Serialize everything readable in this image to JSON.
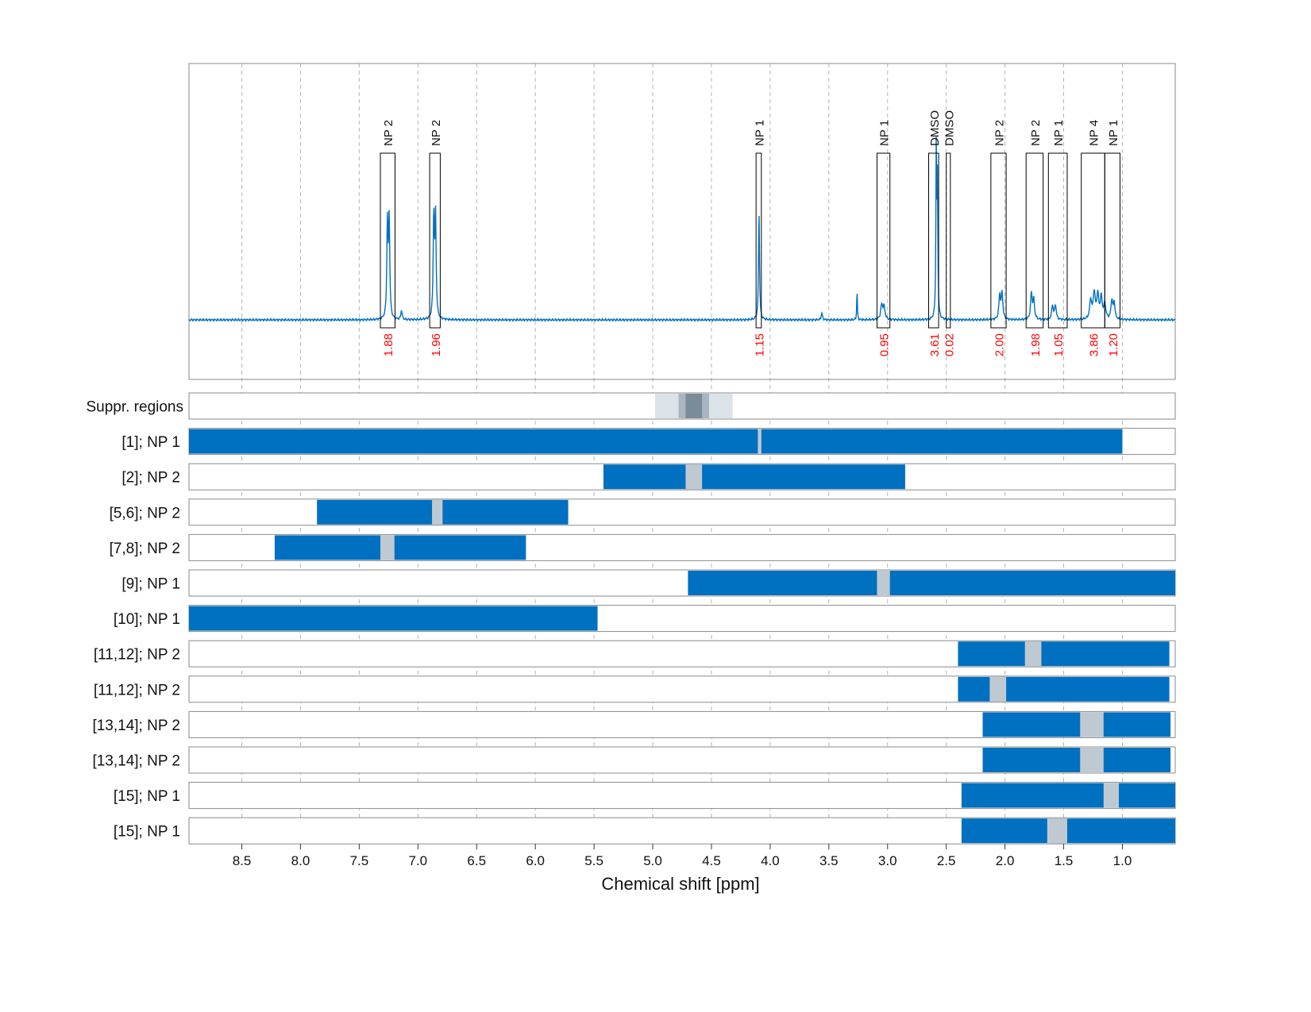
{
  "chart_data": {
    "type": "line",
    "xlabel": "Chemical shift [ppm]",
    "xlim": [
      8.95,
      0.55
    ],
    "x_reversed": true,
    "x_ticks": [
      "8.5",
      "8.0",
      "7.5",
      "7.0",
      "6.5",
      "6.0",
      "5.5",
      "5.0",
      "4.5",
      "4.0",
      "3.5",
      "3.0",
      "2.5",
      "2.0",
      "1.5",
      "1.0"
    ],
    "x_tick_values": [
      8.5,
      8.0,
      7.5,
      7.0,
      6.5,
      6.0,
      5.5,
      5.0,
      4.5,
      4.0,
      3.5,
      3.0,
      2.5,
      2.0,
      1.5,
      1.0
    ],
    "grid": "vertical dashed",
    "colors": {
      "spectrum": "#0070c0",
      "bar": "#0070c0",
      "gap": "#bfc9d1",
      "integral": "#ff0000"
    },
    "spectrum": {
      "baseline": 0,
      "peaks": [
        {
          "x": 7.26,
          "h": 0.4,
          "w": 0.006
        },
        {
          "x": 7.245,
          "h": 0.41,
          "w": 0.006
        },
        {
          "x": 7.14,
          "h": 0.04,
          "w": 0.006
        },
        {
          "x": 6.865,
          "h": 0.43,
          "w": 0.006
        },
        {
          "x": 6.85,
          "h": 0.42,
          "w": 0.006
        },
        {
          "x": 4.095,
          "h": 0.46,
          "w": 0.005
        },
        {
          "x": 3.56,
          "h": 0.03,
          "w": 0.006
        },
        {
          "x": 3.26,
          "h": 0.13,
          "w": 0.003
        },
        {
          "x": 3.05,
          "h": 0.06,
          "w": 0.01
        },
        {
          "x": 3.03,
          "h": 0.05,
          "w": 0.01
        },
        {
          "x": 2.585,
          "h": 0.73,
          "w": 0.004
        },
        {
          "x": 2.575,
          "h": 0.55,
          "w": 0.004
        },
        {
          "x": 2.045,
          "h": 0.1,
          "w": 0.008
        },
        {
          "x": 2.025,
          "h": 0.11,
          "w": 0.008
        },
        {
          "x": 1.775,
          "h": 0.11,
          "w": 0.008
        },
        {
          "x": 1.755,
          "h": 0.08,
          "w": 0.008
        },
        {
          "x": 1.595,
          "h": 0.06,
          "w": 0.008
        },
        {
          "x": 1.57,
          "h": 0.06,
          "w": 0.008
        },
        {
          "x": 1.27,
          "h": 0.08,
          "w": 0.01
        },
        {
          "x": 1.24,
          "h": 0.11,
          "w": 0.01
        },
        {
          "x": 1.21,
          "h": 0.1,
          "w": 0.01
        },
        {
          "x": 1.18,
          "h": 0.09,
          "w": 0.01
        },
        {
          "x": 1.15,
          "h": 0.06,
          "w": 0.01
        },
        {
          "x": 1.09,
          "h": 0.08,
          "w": 0.008
        },
        {
          "x": 1.07,
          "h": 0.07,
          "w": 0.008
        }
      ]
    },
    "integration_regions": [
      {
        "label": "NP 2",
        "from": 7.32,
        "to": 7.195,
        "integral": "1.88"
      },
      {
        "label": "NP 2",
        "from": 6.9,
        "to": 6.81,
        "integral": "1.96"
      },
      {
        "label": "NP 1",
        "from": 4.12,
        "to": 4.075,
        "integral": "1.15"
      },
      {
        "label": "NP 1",
        "from": 3.09,
        "to": 2.98,
        "integral": "0.95"
      },
      {
        "label": "DMSO",
        "from": 2.65,
        "to": 2.565,
        "integral": "3.61"
      },
      {
        "label": "DMSO",
        "from": 2.5,
        "to": 2.465,
        "integral": "0.02"
      },
      {
        "label": "NP 2",
        "from": 2.12,
        "to": 1.99,
        "integral": "2.00"
      },
      {
        "label": "NP 2",
        "from": 1.82,
        "to": 1.675,
        "integral": "1.98"
      },
      {
        "label": "NP 1",
        "from": 1.63,
        "to": 1.47,
        "integral": "1.05"
      },
      {
        "label": "NP 4",
        "from": 1.35,
        "to": 1.15,
        "integral": "3.86"
      },
      {
        "label": "NP 1",
        "from": 1.15,
        "to": 1.02,
        "integral": "1.20"
      }
    ],
    "suppression": {
      "label": "Suppr. regions",
      "bands": [
        {
          "from": 4.98,
          "to": 4.32,
          "level": 1
        },
        {
          "from": 4.78,
          "to": 4.52,
          "level": 2
        },
        {
          "from": 4.72,
          "to": 4.58,
          "level": 3
        }
      ]
    },
    "rows": [
      {
        "label": "[1]; NP 1",
        "from": 8.95,
        "to": 1.0,
        "gap": [
          4.105,
          4.075
        ]
      },
      {
        "label": "[2]; NP 2",
        "from": 5.42,
        "to": 2.85,
        "gap": [
          4.72,
          4.58
        ]
      },
      {
        "label": "[5,6]; NP 2",
        "from": 7.86,
        "to": 5.72,
        "gap": [
          6.88,
          6.79
        ]
      },
      {
        "label": "[7,8]; NP 2",
        "from": 8.22,
        "to": 6.08,
        "gap": [
          7.32,
          7.2
        ]
      },
      {
        "label": "[9]; NP 1",
        "from": 4.7,
        "to": 0.55,
        "gap": [
          3.09,
          2.98
        ]
      },
      {
        "label": "[10]; NP 1",
        "from": 8.95,
        "to": 5.47,
        "gap": null
      },
      {
        "label": "[11,12]; NP 2",
        "from": 2.4,
        "to": 0.6,
        "gap": [
          1.83,
          1.69
        ]
      },
      {
        "label": "[11,12]; NP 2",
        "from": 2.4,
        "to": 0.6,
        "gap": [
          2.13,
          1.99
        ]
      },
      {
        "label": "[13,14]; NP 2",
        "from": 2.19,
        "to": 0.59,
        "gap": [
          1.36,
          1.16
        ]
      },
      {
        "label": "[13,14]; NP 2",
        "from": 2.19,
        "to": 0.59,
        "gap": [
          1.36,
          1.16
        ]
      },
      {
        "label": "[15]; NP 1",
        "from": 2.37,
        "to": 0.55,
        "gap": [
          1.16,
          1.03
        ]
      },
      {
        "label": "[15]; NP 1",
        "from": 2.37,
        "to": 0.55,
        "gap": [
          1.64,
          1.47
        ]
      }
    ]
  }
}
